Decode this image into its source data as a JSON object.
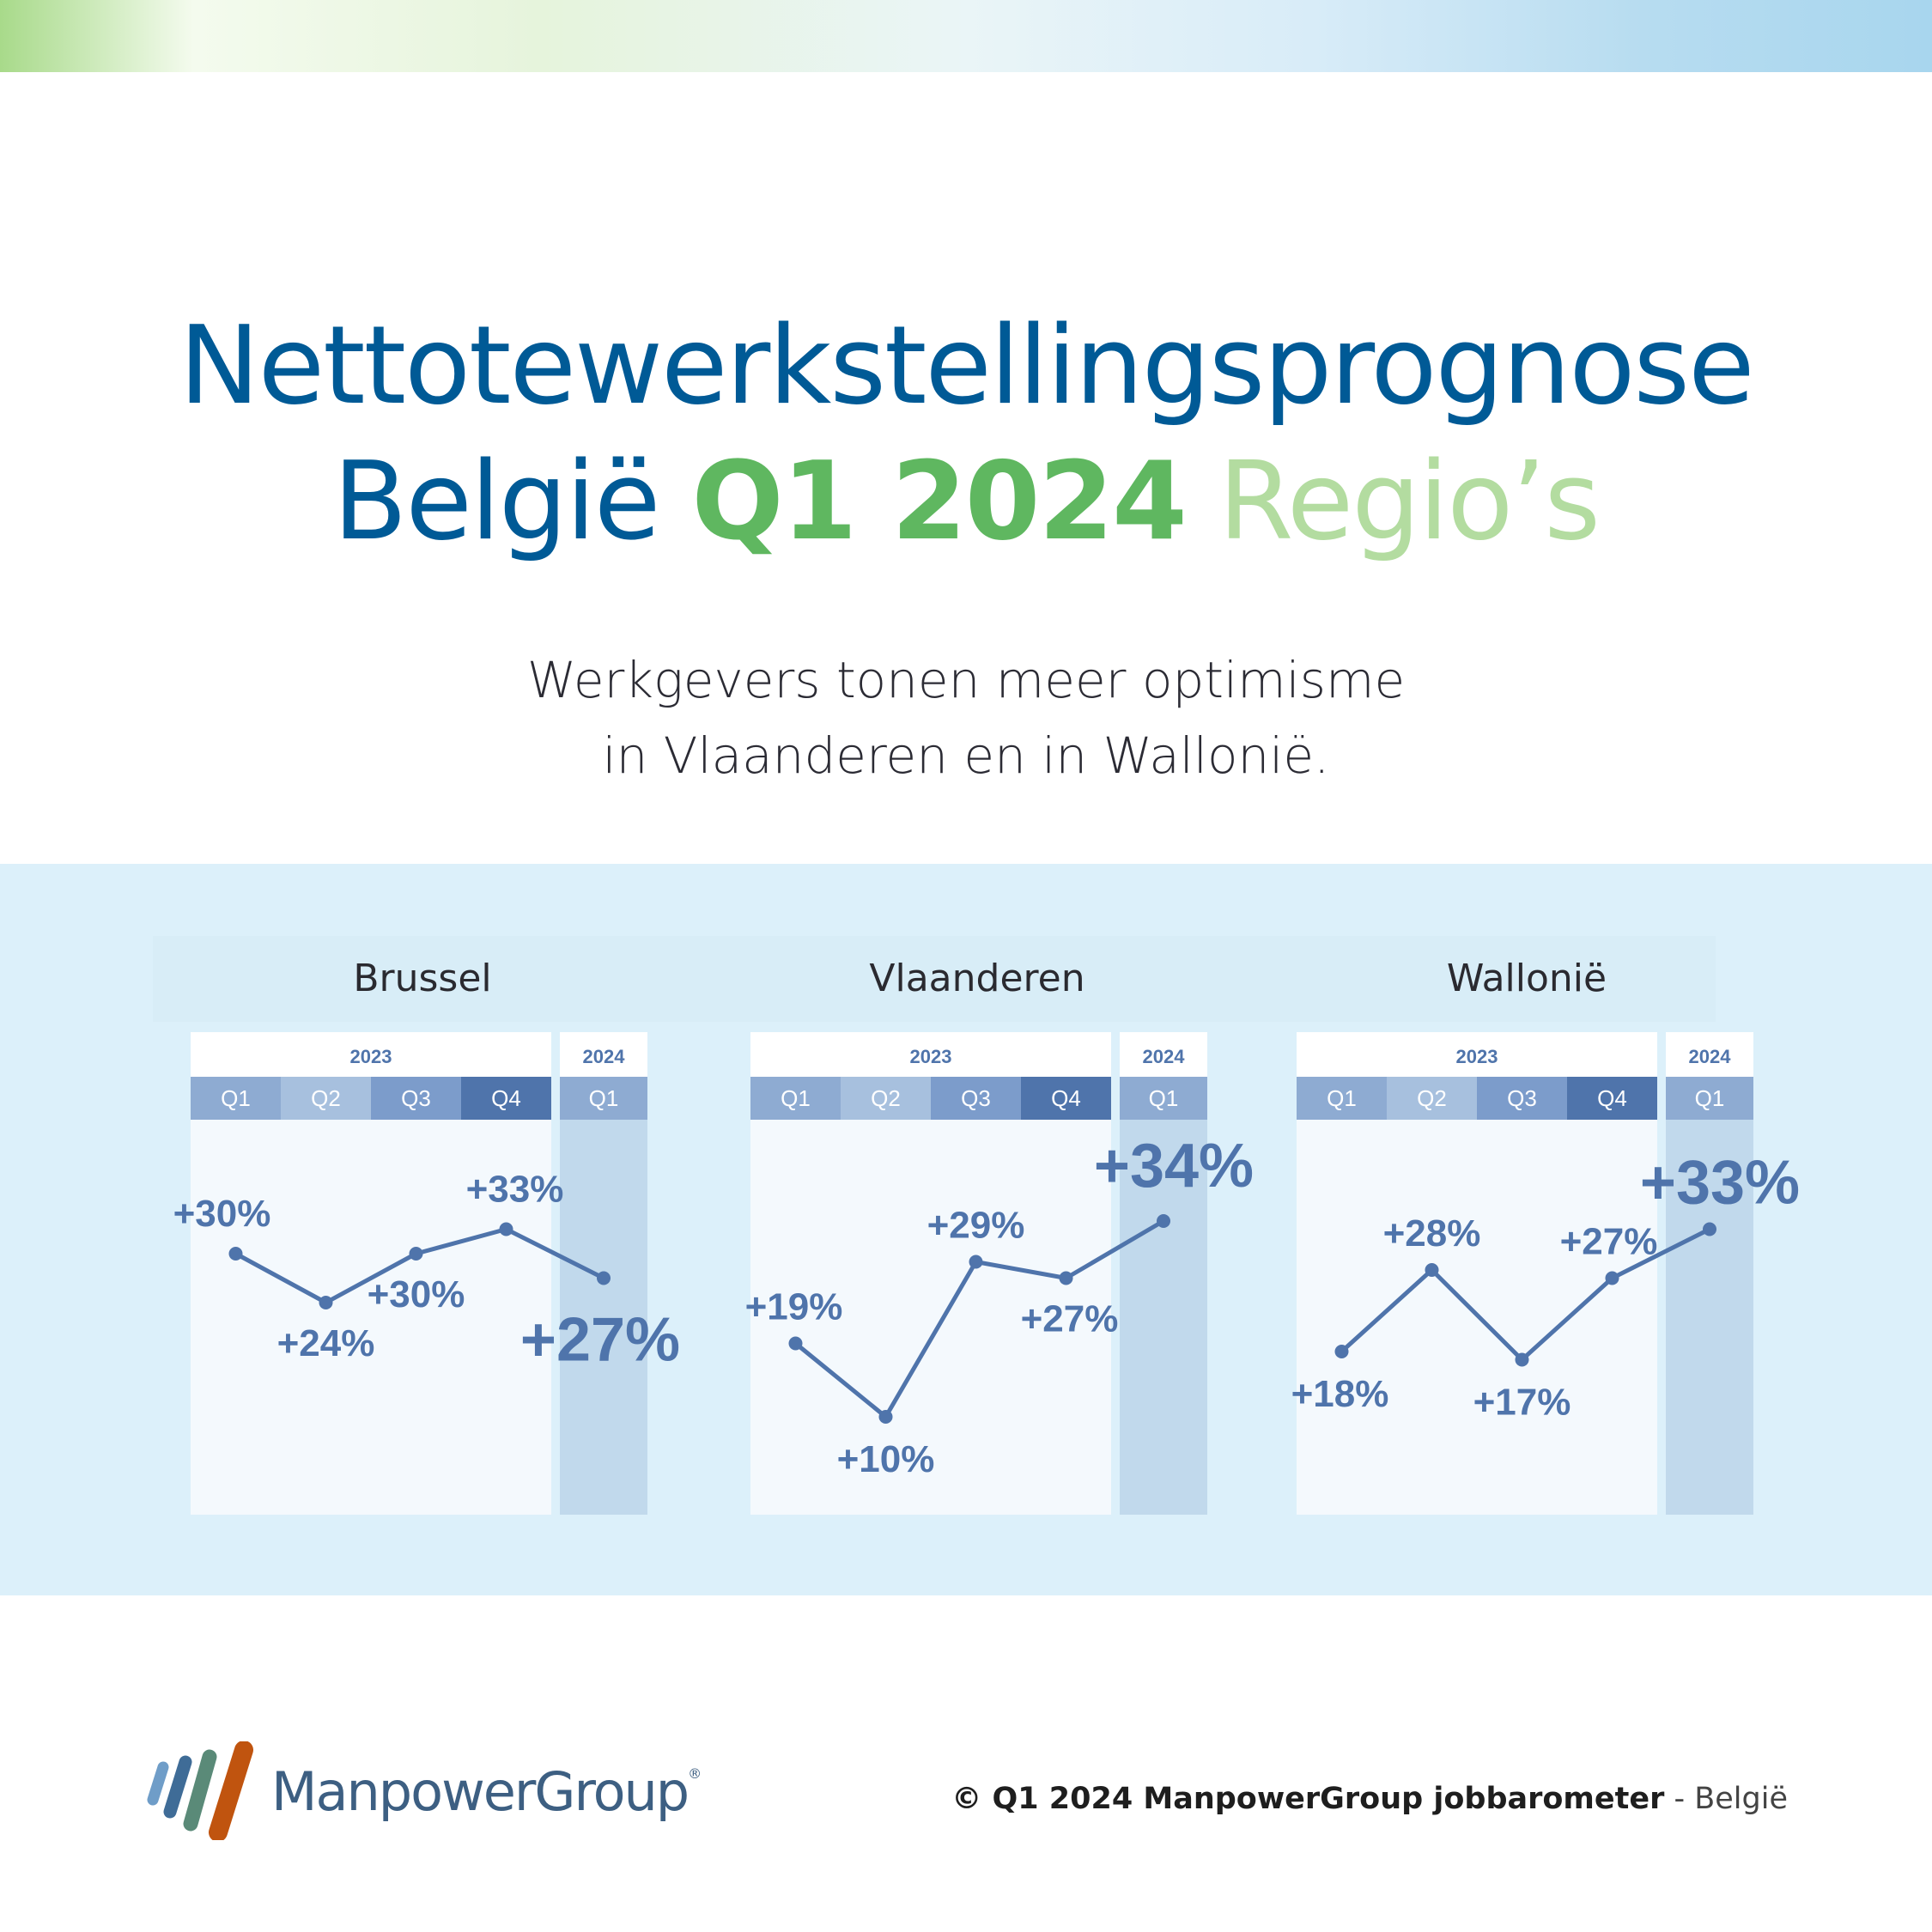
{
  "header": {
    "title_line1": "Nettotewerkstellingsprognose",
    "title_country": "België",
    "title_period": "Q1 2024",
    "title_suffix": "Regio’s"
  },
  "subtitle": {
    "line1": "Werkgevers tonen meer optimisme",
    "line2": "in Vlaanderen en in Wallonië."
  },
  "colors": {
    "title_blue": "#005a96",
    "title_green": "#5fb760",
    "title_lightgreen": "#b3dca0",
    "band_bg": "#dcf0fa",
    "line": "#4f74ab",
    "q1_header": "#8eabd2",
    "q2_header": "#a7c0de",
    "q3_header": "#7c9ccb",
    "q4_header": "#4f74ab",
    "highlight_column": "#c1d9ec"
  },
  "chart_data": [
    {
      "type": "line",
      "title": "Brussel",
      "year_groups": [
        {
          "label": "2023",
          "span": 4
        },
        {
          "label": "2024",
          "span": 1
        }
      ],
      "categories": [
        "Q1",
        "Q2",
        "Q3",
        "Q4",
        "Q1"
      ],
      "values": [
        30,
        24,
        30,
        33,
        27
      ],
      "value_labels": [
        "+30%",
        "+24%",
        "+30%",
        "+33%",
        "+27%"
      ]
    },
    {
      "type": "line",
      "title": "Vlaanderen",
      "year_groups": [
        {
          "label": "2023",
          "span": 4
        },
        {
          "label": "2024",
          "span": 1
        }
      ],
      "categories": [
        "Q1",
        "Q2",
        "Q3",
        "Q4",
        "Q1"
      ],
      "values": [
        19,
        10,
        29,
        27,
        34
      ],
      "value_labels": [
        "+19%",
        "+10%",
        "+29%",
        "+27%",
        "+34%"
      ]
    },
    {
      "type": "line",
      "title": "Wallonië",
      "year_groups": [
        {
          "label": "2023",
          "span": 4
        },
        {
          "label": "2024",
          "span": 1
        }
      ],
      "categories": [
        "Q1",
        "Q2",
        "Q3",
        "Q4",
        "Q1"
      ],
      "values": [
        18,
        28,
        17,
        27,
        33
      ],
      "value_labels": [
        "+18%",
        "+28%",
        "+17%",
        "+27%",
        "+33%"
      ]
    }
  ],
  "logo": {
    "name": "ManpowerGroup",
    "mark": "®"
  },
  "footer": {
    "copyright_bold": "© Q1 2024 ManpowerGroup jobbarometer",
    "copyright_light": " - België"
  }
}
